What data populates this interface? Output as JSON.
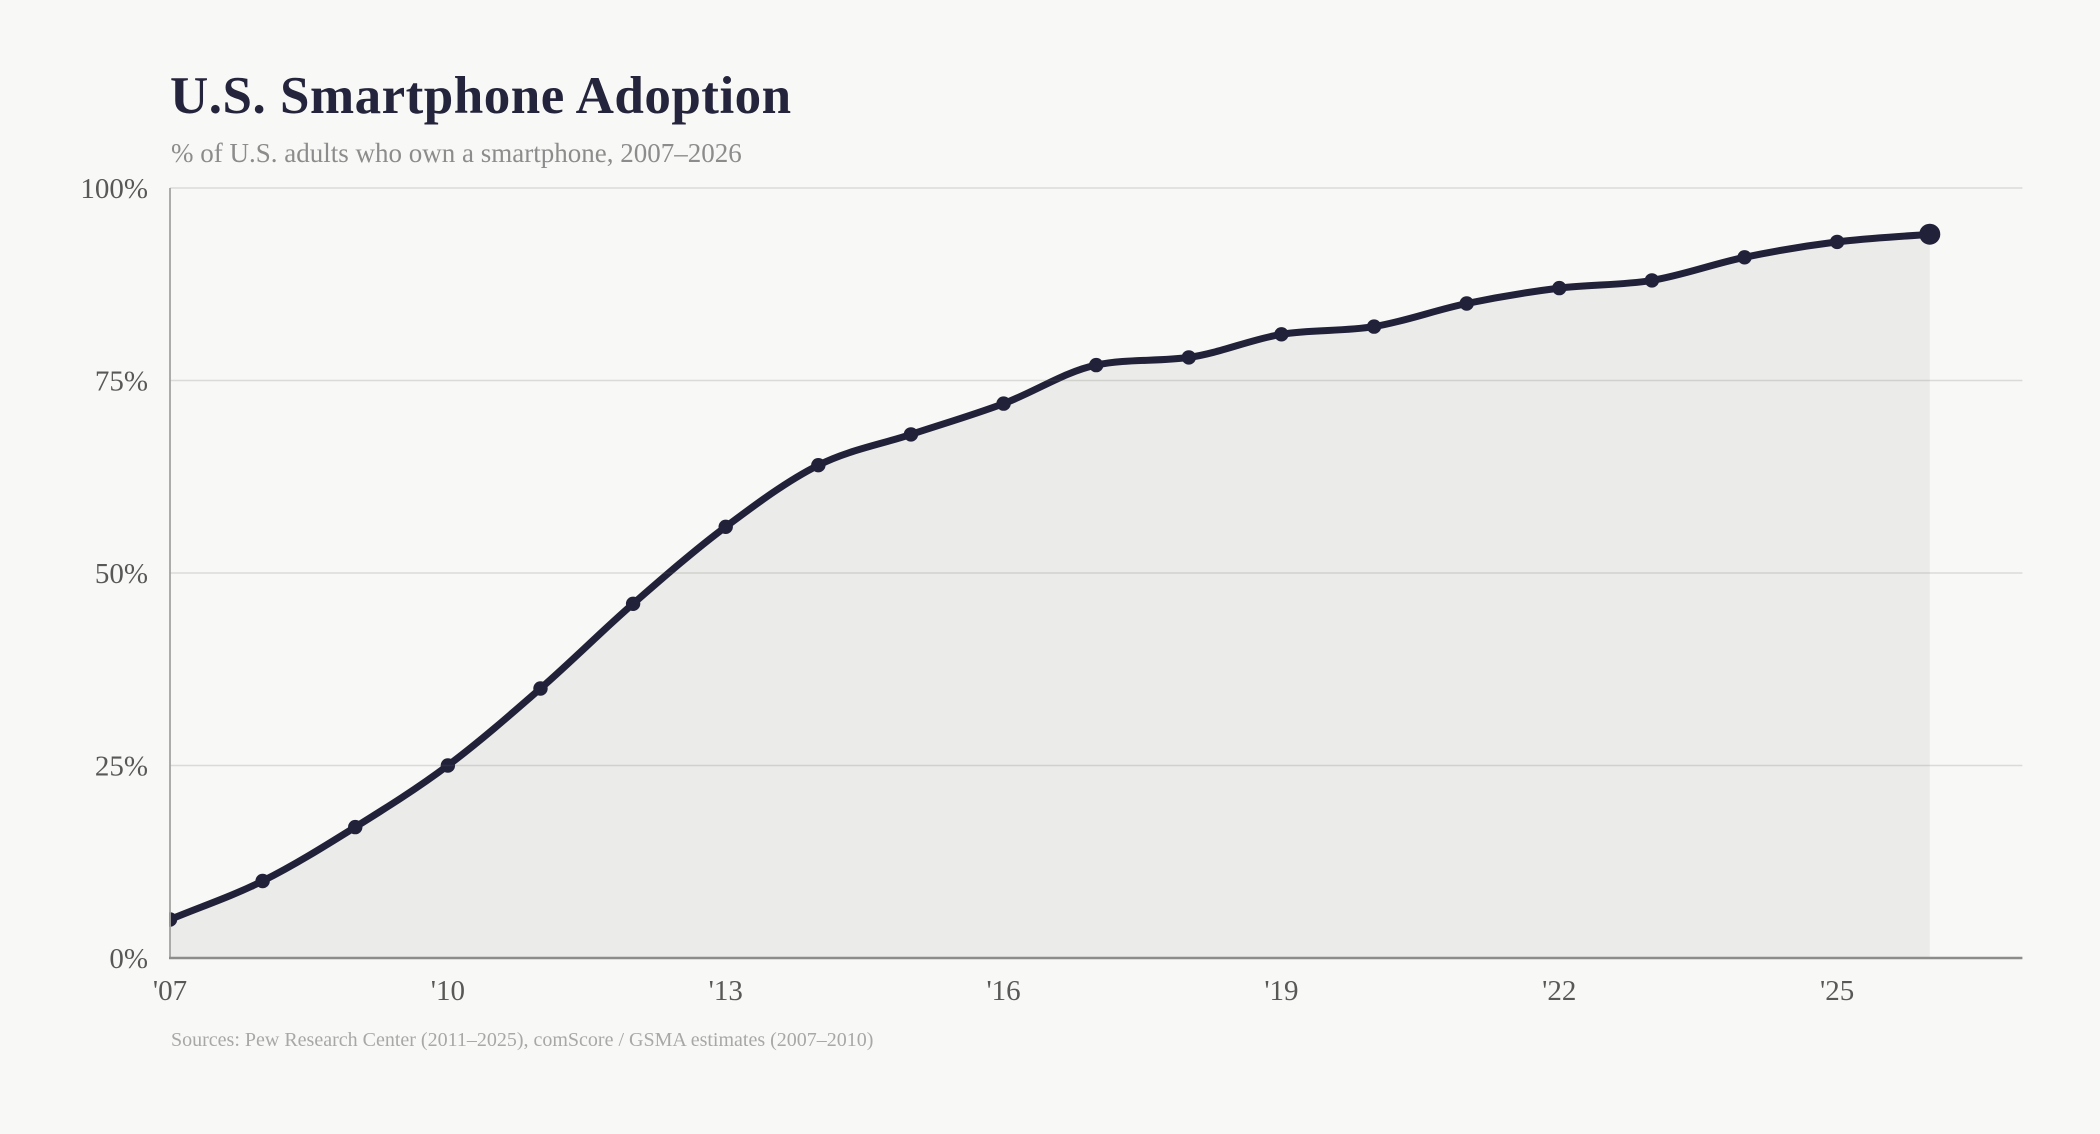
{
  "page": {
    "background": "#f8f8f6"
  },
  "header": {
    "title": "U.S. Smartphone Adoption",
    "subtitle": "% of U.S. adults who own a smartphone, 2007–2026"
  },
  "footer": {
    "source": "Sources: Pew Research Center (2011–2025), comScore / GSMA estimates (2007–2010)"
  },
  "chart_data": {
    "type": "area",
    "title": "U.S. Smartphone Adoption",
    "subtitle": "% of U.S. adults who own a smartphone, 2007–2026",
    "source": "Sources: Pew Research Center (2011–2025), comScore / GSMA estimates (2007–2010)",
    "xlabel": "",
    "ylabel": "",
    "xlim": [
      2007,
      2027
    ],
    "ylim": [
      0,
      100
    ],
    "grid": "horizontal",
    "legend": "none",
    "curve": "monotone",
    "end_point_emphasis": true,
    "series": [
      {
        "name": "% of U.S. adults who own a smartphone",
        "x": [
          2007,
          2008,
          2009,
          2010,
          2011,
          2012,
          2013,
          2014,
          2015,
          2016,
          2017,
          2018,
          2019,
          2020,
          2021,
          2022,
          2023,
          2024,
          2025,
          2026
        ],
        "values": [
          5,
          10,
          17,
          25,
          35,
          46,
          56,
          64,
          68,
          72,
          77,
          78,
          81,
          82,
          85,
          87,
          88,
          91,
          93,
          94
        ]
      }
    ],
    "xticks": [
      {
        "value": 2007,
        "label": "'07"
      },
      {
        "value": 2010,
        "label": "'10"
      },
      {
        "value": 2013,
        "label": "'13"
      },
      {
        "value": 2016,
        "label": "'16"
      },
      {
        "value": 2019,
        "label": "'19"
      },
      {
        "value": 2022,
        "label": "'22"
      },
      {
        "value": 2025,
        "label": "'25"
      }
    ],
    "yticks": [
      {
        "value": 0,
        "label": "0%"
      },
      {
        "value": 25,
        "label": "25%"
      },
      {
        "value": 50,
        "label": "50%"
      },
      {
        "value": 75,
        "label": "75%"
      },
      {
        "value": 100,
        "label": "100%"
      }
    ],
    "colors": {
      "line": "#21213a",
      "fill": "#ebebe9",
      "grid": "rgba(100,100,95,0.20)",
      "axis_x": "#8c8c8a",
      "axis_y": "#a3a3a1",
      "tick_label": "#585856",
      "title": "#24243c",
      "subtitle": "#8c8c8c",
      "source": "#a8a8a6",
      "background": "#f8f8f6"
    }
  }
}
